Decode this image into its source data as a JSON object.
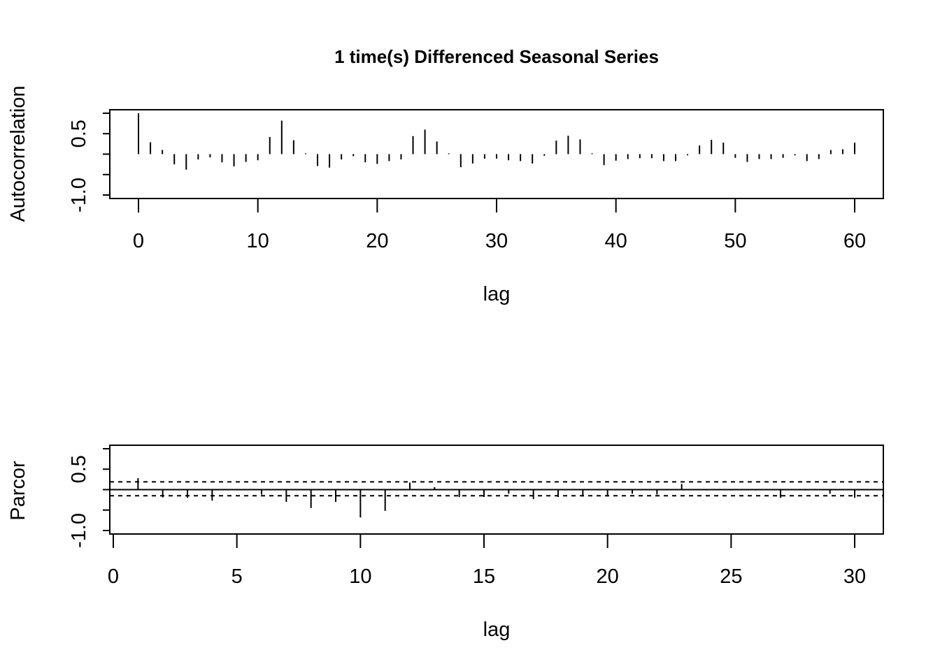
{
  "chart_data": [
    {
      "type": "bar",
      "subtype": "acf",
      "title": "1 time(s) Differenced Seasonal Series",
      "xlabel": "lag",
      "ylabel": "Autocorrelation",
      "xlim": [
        -2.4,
        62.4
      ],
      "ylim": [
        -1.1,
        1.1
      ],
      "xticks": [
        0,
        10,
        20,
        30,
        40,
        50,
        60
      ],
      "xtick_labels": [
        "0",
        "10",
        "20",
        "30",
        "40",
        "50",
        "60"
      ],
      "yticks": [
        -1.0,
        -0.5,
        0.0,
        0.5,
        1.0
      ],
      "ytick_labels": [
        "-1.0",
        "",
        "",
        "0.5",
        ""
      ],
      "x": [
        0,
        1,
        2,
        3,
        4,
        5,
        6,
        7,
        8,
        9,
        10,
        11,
        12,
        13,
        14,
        15,
        16,
        17,
        18,
        19,
        20,
        21,
        22,
        23,
        24,
        25,
        26,
        27,
        28,
        29,
        30,
        31,
        32,
        33,
        34,
        35,
        36,
        37,
        38,
        39,
        40,
        41,
        42,
        43,
        44,
        45,
        46,
        47,
        48,
        49,
        50,
        51,
        52,
        53,
        54,
        55,
        56,
        57,
        58,
        59,
        60
      ],
      "values": [
        1.0,
        0.29,
        0.1,
        -0.25,
        -0.38,
        -0.13,
        -0.08,
        -0.2,
        -0.3,
        -0.19,
        -0.15,
        0.42,
        0.82,
        0.34,
        0.02,
        -0.29,
        -0.33,
        -0.13,
        -0.05,
        -0.2,
        -0.24,
        -0.17,
        -0.13,
        0.44,
        0.6,
        0.31,
        0.02,
        -0.32,
        -0.23,
        -0.11,
        -0.11,
        -0.15,
        -0.17,
        -0.23,
        -0.04,
        0.33,
        0.45,
        0.36,
        0.02,
        -0.27,
        -0.16,
        -0.12,
        -0.1,
        -0.1,
        -0.17,
        -0.17,
        -0.03,
        0.21,
        0.35,
        0.28,
        -0.09,
        -0.19,
        -0.12,
        -0.12,
        -0.09,
        -0.03,
        -0.17,
        -0.12,
        0.1,
        0.12,
        0.28
      ],
      "grid": false
    },
    {
      "type": "bar",
      "subtype": "pacf",
      "title": "",
      "xlabel": "lag",
      "ylabel": "Parcor",
      "xlim": [
        0,
        30
      ],
      "ylim": [
        -1.1,
        1.1
      ],
      "xticks": [
        0,
        5,
        10,
        15,
        20,
        25,
        30
      ],
      "xtick_labels": [
        "0",
        "5",
        "10",
        "15",
        "20",
        "25",
        "30"
      ],
      "yticks": [
        -1.0,
        -0.5,
        0.0,
        0.5,
        1.0
      ],
      "ytick_labels": [
        "-1.0",
        "",
        "",
        "0.5",
        ""
      ],
      "x": [
        1,
        2,
        3,
        4,
        5,
        6,
        7,
        8,
        9,
        10,
        11,
        12,
        13,
        14,
        15,
        16,
        17,
        18,
        19,
        20,
        21,
        22,
        23,
        24,
        25,
        26,
        27,
        28,
        29,
        30
      ],
      "values": [
        0.28,
        -0.19,
        -0.2,
        -0.27,
        -0.02,
        -0.12,
        -0.3,
        -0.45,
        -0.3,
        -0.68,
        -0.52,
        0.17,
        0.06,
        -0.18,
        -0.18,
        -0.1,
        -0.23,
        -0.18,
        -0.17,
        -0.17,
        -0.1,
        -0.12,
        0.14,
        -0.02,
        -0.02,
        -0.02,
        -0.2,
        -0.02,
        -0.1,
        -0.2
      ],
      "confidence_bounds": [
        -0.15,
        0.19
      ],
      "grid": false
    }
  ]
}
